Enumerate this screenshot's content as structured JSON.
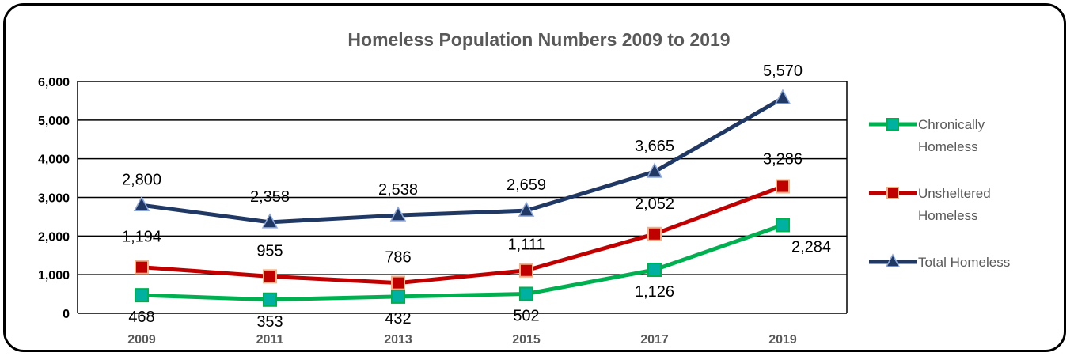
{
  "chart_data": {
    "type": "line",
    "title": "Homeless Population Numbers 2009 to 2019",
    "categories": [
      "2009",
      "2011",
      "2013",
      "2015",
      "2017",
      "2019"
    ],
    "ylim": [
      0,
      6000
    ],
    "yticks": [
      0,
      1000,
      2000,
      3000,
      4000,
      5000,
      6000
    ],
    "ytick_labels": [
      "0",
      "1,000",
      "2,000",
      "3,000",
      "4,000",
      "5,000",
      "6,000"
    ],
    "grid": true,
    "legend": "right",
    "series": [
      {
        "name": "Chronically Homeless",
        "legend_lines": [
          "Chronically",
          "Homeless"
        ],
        "values": [
          468,
          353,
          432,
          502,
          1126,
          2284
        ],
        "labels": [
          "468",
          "353",
          "432",
          "502",
          "1,126",
          "2,284"
        ],
        "color": "#00B050",
        "marker": "square",
        "marker_fill": "#00B0A0"
      },
      {
        "name": "Unsheltered Homeless",
        "legend_lines": [
          "Unsheltered",
          "Homeless"
        ],
        "values": [
          1194,
          955,
          786,
          1111,
          2052,
          3286
        ],
        "labels": [
          "1,194",
          "955",
          "786",
          "1,111",
          "2,052",
          "3,286"
        ],
        "color": "#C00000",
        "marker": "square",
        "marker_fill": "#C00000"
      },
      {
        "name": "Total Homeless",
        "legend_lines": [
          "Total Homeless"
        ],
        "values": [
          2800,
          2358,
          2538,
          2659,
          3665,
          5570
        ],
        "labels": [
          "2,800",
          "2,358",
          "2,538",
          "2,659",
          "3,665",
          "5,570"
        ],
        "color": "#1F3864",
        "marker": "triangle",
        "marker_fill": "#1F3864"
      }
    ]
  }
}
